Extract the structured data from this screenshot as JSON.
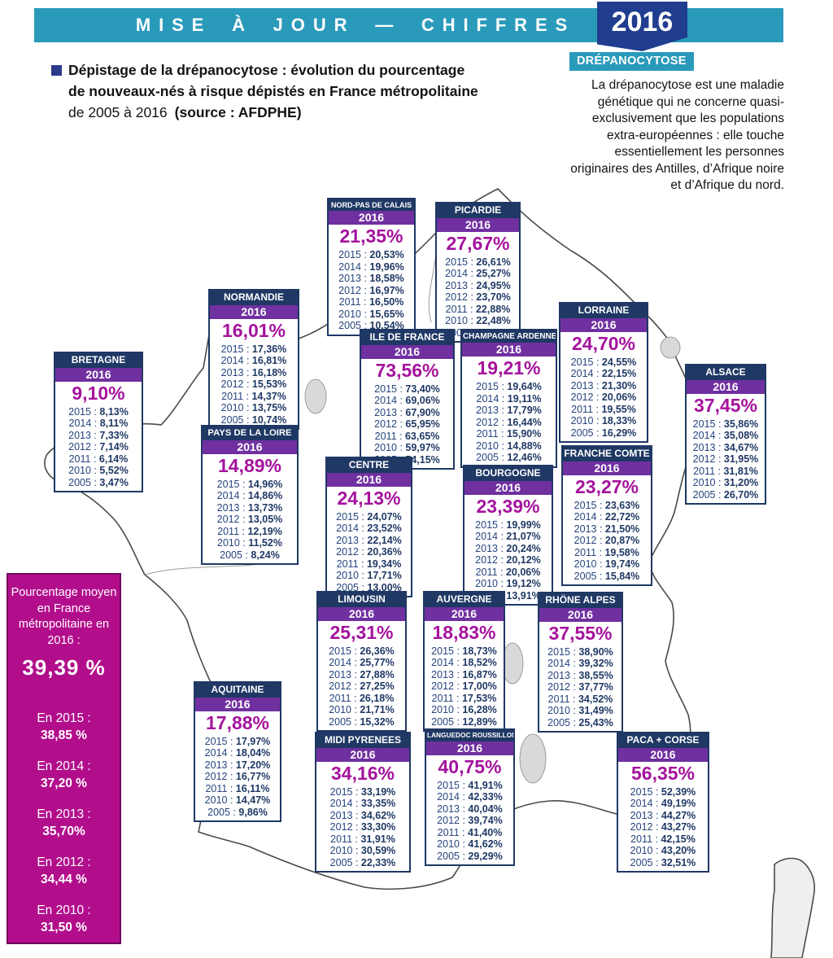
{
  "banner": {
    "title": "MISE À JOUR — CHIFFRES",
    "badge": "2016"
  },
  "title": {
    "line1": "Dépistage de la drépanocytose : évolution du pourcentage",
    "line2": "de nouveaux-nés à risque dépistés en France métropolitaine",
    "line3_period": "de 2005 à 2016",
    "line3_source": "(source : AFDPHE)"
  },
  "info_box": {
    "label": "DRÉPANOCYTOSE",
    "text": "La drépanocytose est une maladie génétique qui ne concerne quasi-exclusivement que les populations extra-européennes : elle touche essentiellement les personnes originaires des Antilles, d’Afrique noire et d’Afrique du nord."
  },
  "average": {
    "heading": "Pourcentage moyen en France métropolitaine en 2016 :",
    "value": "39,39 %",
    "history": [
      {
        "label": "En 2015 :",
        "value": "38,85 %"
      },
      {
        "label": "En 2014 :",
        "value": "37,20 %"
      },
      {
        "label": "En 2013 :",
        "value": "35,70%"
      },
      {
        "label": "En 2012 :",
        "value": "34,44 %"
      },
      {
        "label": "En 2010 :",
        "value": "31,50 %"
      }
    ]
  },
  "regions": [
    {
      "name": "NORD-PAS DE CALAIS",
      "year": "2016",
      "value_2016": "21,35%",
      "history": [
        {
          "year": "2015",
          "value": "20,53%"
        },
        {
          "year": "2014",
          "value": "19,96%"
        },
        {
          "year": "2013",
          "value": "18,58%"
        },
        {
          "year": "2012",
          "value": "16,97%"
        },
        {
          "year": "2011",
          "value": "16,50%"
        },
        {
          "year": "2010",
          "value": "15,65%"
        },
        {
          "year": "2005",
          "value": "10,54%"
        }
      ]
    },
    {
      "name": "PICARDIE",
      "year": "2016",
      "value_2016": "27,67%",
      "history": [
        {
          "year": "2015",
          "value": "26,61%"
        },
        {
          "year": "2014",
          "value": "25,27%"
        },
        {
          "year": "2013",
          "value": "24,95%"
        },
        {
          "year": "2012",
          "value": "23,70%"
        },
        {
          "year": "2011",
          "value": "22,88%"
        },
        {
          "year": "2010",
          "value": "22,48%"
        },
        {
          "year": "2005",
          "value": "16,29%"
        }
      ]
    },
    {
      "name": "NORMANDIE",
      "year": "2016",
      "value_2016": "16,01%",
      "history": [
        {
          "year": "2015",
          "value": "17,36%"
        },
        {
          "year": "2014",
          "value": "16,81%"
        },
        {
          "year": "2013",
          "value": "16,18%"
        },
        {
          "year": "2012",
          "value": "15,53%"
        },
        {
          "year": "2011",
          "value": "14,37%"
        },
        {
          "year": "2010",
          "value": "13,75%"
        },
        {
          "year": "2005",
          "value": "10,74%"
        }
      ]
    },
    {
      "name": "LORRAINE",
      "year": "2016",
      "value_2016": "24,70%",
      "history": [
        {
          "year": "2015",
          "value": "24,55%"
        },
        {
          "year": "2014",
          "value": "22,15%"
        },
        {
          "year": "2013",
          "value": "21,30%"
        },
        {
          "year": "2012",
          "value": "20,06%"
        },
        {
          "year": "2011",
          "value": "19,55%"
        },
        {
          "year": "2010",
          "value": "18,33%"
        },
        {
          "year": "2005",
          "value": "16,29%"
        }
      ]
    },
    {
      "name": "BRETAGNE",
      "year": "2016",
      "value_2016": "9,10%",
      "history": [
        {
          "year": "2015",
          "value": "8,13%"
        },
        {
          "year": "2014",
          "value": "8,11%"
        },
        {
          "year": "2013",
          "value": "7,33%"
        },
        {
          "year": "2012",
          "value": "7,14%"
        },
        {
          "year": "2011",
          "value": "6,14%"
        },
        {
          "year": "2010",
          "value": "5,52%"
        },
        {
          "year": "2005",
          "value": "3,47%"
        }
      ]
    },
    {
      "name": "ILE DE FRANCE",
      "year": "2016",
      "value_2016": "73,56%",
      "history": [
        {
          "year": "2015",
          "value": "73,40%"
        },
        {
          "year": "2014",
          "value": "69,06%"
        },
        {
          "year": "2013",
          "value": "67,90%"
        },
        {
          "year": "2012",
          "value": "65,95%"
        },
        {
          "year": "2011",
          "value": "63,65%"
        },
        {
          "year": "2010",
          "value": "59,97%"
        },
        {
          "year": "2005",
          "value": "54,15%"
        }
      ]
    },
    {
      "name": "CHAMPAGNE ARDENNES",
      "year": "2016",
      "value_2016": "19,21%",
      "history": [
        {
          "year": "2015",
          "value": "19,64%"
        },
        {
          "year": "2014",
          "value": "19,11%"
        },
        {
          "year": "2013",
          "value": "17,79%"
        },
        {
          "year": "2012",
          "value": "16,44%"
        },
        {
          "year": "2011",
          "value": "15,90%"
        },
        {
          "year": "2010",
          "value": "14,88%"
        },
        {
          "year": "2005",
          "value": "12,46%"
        }
      ]
    },
    {
      "name": "ALSACE",
      "year": "2016",
      "value_2016": "37,45%",
      "history": [
        {
          "year": "2015",
          "value": "35,86%"
        },
        {
          "year": "2014",
          "value": "35,08%"
        },
        {
          "year": "2013",
          "value": "34,67%"
        },
        {
          "year": "2012",
          "value": "31,95%"
        },
        {
          "year": "2011",
          "value": "31,81%"
        },
        {
          "year": "2010",
          "value": "31,20%"
        },
        {
          "year": "2005",
          "value": "26,70%"
        }
      ]
    },
    {
      "name": "PAYS DE LA LOIRE",
      "year": "2016",
      "value_2016": "14,89%",
      "history": [
        {
          "year": "2015",
          "value": "14,96%"
        },
        {
          "year": "2014",
          "value": "14,86%"
        },
        {
          "year": "2013",
          "value": "13,73%"
        },
        {
          "year": "2012",
          "value": "13,05%"
        },
        {
          "year": "2011",
          "value": "12,19%"
        },
        {
          "year": "2010",
          "value": "11,52%"
        },
        {
          "year": "2005",
          "value": "8,24%"
        }
      ]
    },
    {
      "name": "CENTRE",
      "year": "2016",
      "value_2016": "24,13%",
      "history": [
        {
          "year": "2015",
          "value": "24,07%"
        },
        {
          "year": "2014",
          "value": "23,52%"
        },
        {
          "year": "2013",
          "value": "22,14%"
        },
        {
          "year": "2012",
          "value": "20,36%"
        },
        {
          "year": "2011",
          "value": "19,34%"
        },
        {
          "year": "2010",
          "value": "17,71%"
        },
        {
          "year": "2005",
          "value": "13,00%"
        }
      ]
    },
    {
      "name": "BOURGOGNE",
      "year": "2016",
      "value_2016": "23,39%",
      "history": [
        {
          "year": "2015",
          "value": "19,99%"
        },
        {
          "year": "2014",
          "value": "21,07%"
        },
        {
          "year": "2013",
          "value": "20,24%"
        },
        {
          "year": "2012",
          "value": "20,12%"
        },
        {
          "year": "2011",
          "value": "20,06%"
        },
        {
          "year": "2010",
          "value": "19,12%"
        },
        {
          "year": "2005",
          "value": "13,91%"
        }
      ]
    },
    {
      "name": "FRANCHE COMTE",
      "year": "2016",
      "value_2016": "23,27%",
      "history": [
        {
          "year": "2015",
          "value": "23,63%"
        },
        {
          "year": "2014",
          "value": "22,72%"
        },
        {
          "year": "2013",
          "value": "21,50%"
        },
        {
          "year": "2012",
          "value": "20,87%"
        },
        {
          "year": "2011",
          "value": "19,58%"
        },
        {
          "year": "2010",
          "value": "19,74%"
        },
        {
          "year": "2005",
          "value": "15,84%"
        }
      ]
    },
    {
      "name": "LIMOUSIN",
      "year": "2016",
      "value_2016": "25,31%",
      "history": [
        {
          "year": "2015",
          "value": "26,36%"
        },
        {
          "year": "2014",
          "value": "25,77%"
        },
        {
          "year": "2013",
          "value": "27,88%"
        },
        {
          "year": "2012",
          "value": "27,25%"
        },
        {
          "year": "2011",
          "value": "26,18%"
        },
        {
          "year": "2010",
          "value": "21,71%"
        },
        {
          "year": "2005",
          "value": "15,32%"
        }
      ]
    },
    {
      "name": "AUVERGNE",
      "year": "2016",
      "value_2016": "18,83%",
      "history": [
        {
          "year": "2015",
          "value": "18,73%"
        },
        {
          "year": "2014",
          "value": "18,52%"
        },
        {
          "year": "2013",
          "value": "16,87%"
        },
        {
          "year": "2012",
          "value": "17,00%"
        },
        {
          "year": "2011",
          "value": "17,53%"
        },
        {
          "year": "2010",
          "value": "16,28%"
        },
        {
          "year": "2005",
          "value": "12,89%"
        }
      ]
    },
    {
      "name": "RHÖNE ALPES",
      "year": "2016",
      "value_2016": "37,55%",
      "history": [
        {
          "year": "2015",
          "value": "38,90%"
        },
        {
          "year": "2014",
          "value": "39,32%"
        },
        {
          "year": "2013",
          "value": "38,55%"
        },
        {
          "year": "2012",
          "value": "37,77%"
        },
        {
          "year": "2011",
          "value": "34,52%"
        },
        {
          "year": "2010",
          "value": "31,49%"
        },
        {
          "year": "2005",
          "value": "25,43%"
        }
      ]
    },
    {
      "name": "AQUITAINE",
      "year": "2016",
      "value_2016": "17,88%",
      "history": [
        {
          "year": "2015",
          "value": "17,97%"
        },
        {
          "year": "2014",
          "value": "18,04%"
        },
        {
          "year": "2013",
          "value": "17,20%"
        },
        {
          "year": "2012",
          "value": "16,77%"
        },
        {
          "year": "2011",
          "value": "16,11%"
        },
        {
          "year": "2010",
          "value": "14,47%"
        },
        {
          "year": "2005",
          "value": "9,86%"
        }
      ]
    },
    {
      "name": "MIDI PYRENEES",
      "year": "2016",
      "value_2016": "34,16%",
      "history": [
        {
          "year": "2015",
          "value": "33,19%"
        },
        {
          "year": "2014",
          "value": "33,35%"
        },
        {
          "year": "2013",
          "value": "34,62%"
        },
        {
          "year": "2012",
          "value": "33,30%"
        },
        {
          "year": "2011",
          "value": "31,91%"
        },
        {
          "year": "2010",
          "value": "30,59%"
        },
        {
          "year": "2005",
          "value": "22,33%"
        }
      ]
    },
    {
      "name": "LANGUEDOC ROUSSILLON",
      "year": "2016",
      "value_2016": "40,75%",
      "history": [
        {
          "year": "2015",
          "value": "41,91%"
        },
        {
          "year": "2014",
          "value": "42,33%"
        },
        {
          "year": "2013",
          "value": "40,04%"
        },
        {
          "year": "2012",
          "value": "39,74%"
        },
        {
          "year": "2011",
          "value": "41,40%"
        },
        {
          "year": "2010",
          "value": "41,62%"
        },
        {
          "year": "2005",
          "value": "29,29%"
        }
      ]
    },
    {
      "name": "PACA + CORSE",
      "year": "2016",
      "value_2016": "56,35%",
      "history": [
        {
          "year": "2015",
          "value": "52,39%"
        },
        {
          "year": "2014",
          "value": "49,19%"
        },
        {
          "year": "2013",
          "value": "44,27%"
        },
        {
          "year": "2012",
          "value": "43,27%"
        },
        {
          "year": "2011",
          "value": "42,15%"
        },
        {
          "year": "2010",
          "value": "43,20%"
        },
        {
          "year": "2005",
          "value": "32,51%"
        }
      ]
    }
  ]
}
